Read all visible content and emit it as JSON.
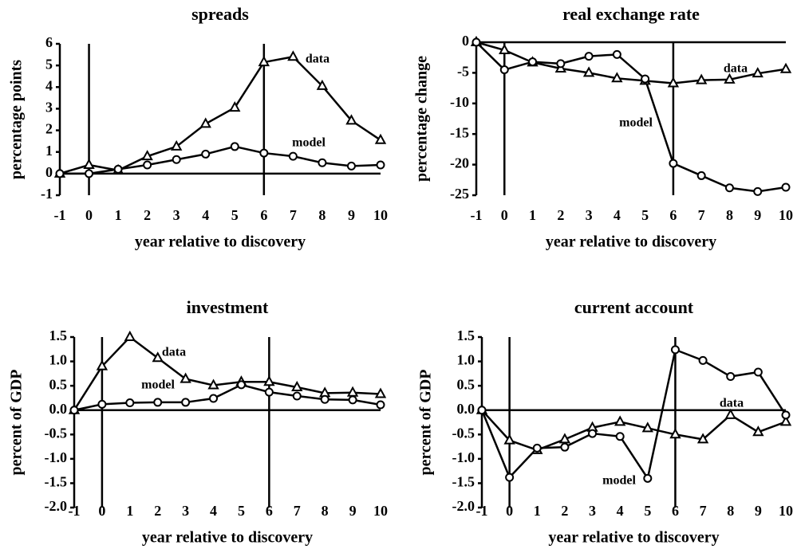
{
  "chart_data": [
    {
      "type": "line",
      "title": "spreads",
      "xlabel": "year relative to discovery",
      "ylabel": "percentage points",
      "x": [
        -1,
        0,
        1,
        2,
        3,
        4,
        5,
        6,
        7,
        8,
        9,
        10
      ],
      "xlim": [
        -1,
        10
      ],
      "xticks": [
        -1,
        0,
        1,
        2,
        3,
        4,
        5,
        6,
        7,
        8,
        9,
        10
      ],
      "ylim": [
        -1,
        6
      ],
      "yticks": [
        -1,
        0,
        1,
        2,
        3,
        4,
        5,
        6
      ],
      "vlines": [
        0,
        6
      ],
      "hline": 0,
      "series": [
        {
          "name": "data",
          "marker": "triangle",
          "color": "#000000",
          "values": [
            0,
            0.4,
            0.15,
            0.8,
            1.25,
            2.3,
            3.05,
            5.15,
            5.4,
            4.05,
            2.45,
            1.55
          ]
        },
        {
          "name": "model",
          "marker": "circle",
          "color": "#000000",
          "values": [
            0,
            0,
            0.2,
            0.4,
            0.65,
            0.9,
            1.25,
            0.95,
            0.8,
            0.5,
            0.35,
            0.4
          ]
        }
      ]
    },
    {
      "type": "line",
      "title": "real exchange rate",
      "xlabel": "year relative to discovery",
      "ylabel": "percentage change",
      "x": [
        -1,
        0,
        1,
        2,
        3,
        4,
        5,
        6,
        7,
        8,
        9,
        10
      ],
      "xlim": [
        -1,
        10
      ],
      "xticks": [
        -1,
        0,
        1,
        2,
        3,
        4,
        5,
        6,
        7,
        8,
        9,
        10
      ],
      "ylim": [
        -25,
        0
      ],
      "yticks": [
        -25,
        -20,
        -15,
        -10,
        -5,
        0
      ],
      "vlines": [
        0,
        6
      ],
      "hline": 0,
      "series": [
        {
          "name": "data",
          "marker": "triangle",
          "color": "#000000",
          "values": [
            0,
            -1.3,
            -3.3,
            -4.3,
            -5,
            -5.9,
            -6.3,
            -6.7,
            -6.2,
            -6.1,
            -5.1,
            -4.4
          ]
        },
        {
          "name": "model",
          "marker": "circle",
          "color": "#000000",
          "values": [
            0,
            -4.5,
            -3.2,
            -3.5,
            -2.3,
            -2,
            -6,
            -19.8,
            -21.8,
            -23.8,
            -24.4,
            -23.7
          ]
        }
      ]
    },
    {
      "type": "line",
      "title": "investment",
      "xlabel": "year relative to discovery",
      "ylabel": "percent of GDP",
      "x": [
        -1,
        0,
        1,
        2,
        3,
        4,
        5,
        6,
        7,
        8,
        9,
        10
      ],
      "xlim": [
        -1,
        10
      ],
      "xticks": [
        -1,
        0,
        1,
        2,
        3,
        4,
        5,
        6,
        7,
        8,
        9,
        10
      ],
      "ylim": [
        -2,
        1.5
      ],
      "yticks": [
        {
          "value": -2,
          "label": "-2.0"
        },
        -1.5,
        {
          "value": -1,
          "label": "-1.0"
        },
        -0.5,
        {
          "value": 0,
          "label": "0.0"
        },
        0.5,
        {
          "value": 1,
          "label": "1.0"
        },
        1.5
      ],
      "vlines": [
        0,
        6
      ],
      "hline": 0,
      "series": [
        {
          "name": "data",
          "marker": "triangle",
          "color": "#000000",
          "values": [
            0,
            0.9,
            1.5,
            1.07,
            0.64,
            0.51,
            0.58,
            0.58,
            0.47,
            0.35,
            0.36,
            0.33
          ]
        },
        {
          "name": "model",
          "marker": "circle",
          "color": "#000000",
          "values": [
            0,
            0.12,
            0.15,
            0.16,
            0.16,
            0.24,
            0.52,
            0.37,
            0.29,
            0.22,
            0.21,
            0.11
          ]
        }
      ]
    },
    {
      "type": "line",
      "title": "current account",
      "xlabel": "year relative to discovery",
      "ylabel": "percent of GDP",
      "x": [
        -1,
        0,
        1,
        2,
        3,
        4,
        5,
        6,
        7,
        8,
        9,
        10
      ],
      "xlim": [
        -1,
        10
      ],
      "xticks": [
        -1,
        0,
        1,
        2,
        3,
        4,
        5,
        6,
        7,
        8,
        9,
        10
      ],
      "ylim": [
        -2,
        1.5
      ],
      "yticks": [
        {
          "value": -2,
          "label": "-2.0"
        },
        -1.5,
        {
          "value": -1,
          "label": "-1.0"
        },
        -0.5,
        {
          "value": 0,
          "label": "0.0"
        },
        0.5,
        {
          "value": 1,
          "label": "1.0"
        },
        1.5
      ],
      "vlines": [
        0,
        6
      ],
      "hline": 0,
      "series": [
        {
          "name": "data",
          "marker": "triangle",
          "color": "#000000",
          "values": [
            0,
            -0.62,
            -0.82,
            -0.6,
            -0.36,
            -0.24,
            -0.37,
            -0.5,
            -0.6,
            -0.1,
            -0.45,
            -0.24
          ]
        },
        {
          "name": "model",
          "marker": "circle",
          "color": "#000000",
          "values": [
            0,
            -1.38,
            -0.78,
            -0.76,
            -0.48,
            -0.54,
            -1.4,
            1.24,
            1.02,
            0.69,
            0.78,
            -0.1
          ]
        }
      ]
    }
  ]
}
